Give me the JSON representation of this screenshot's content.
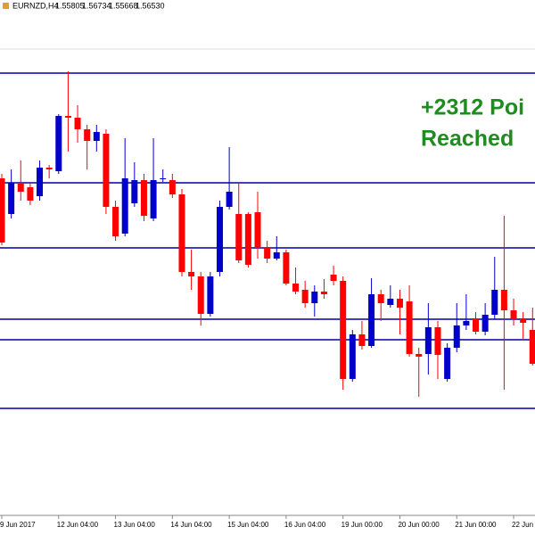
{
  "header": {
    "symbol": "EURNZD,H4",
    "ohlc": [
      "1.55805",
      "1.56734",
      "1.55668",
      "1.56530"
    ]
  },
  "chart_data": {
    "type": "candlestick",
    "annotations": [
      "+2312 Poi",
      "Reached"
    ],
    "up_color": "#0000cc",
    "down_color": "#ff0000",
    "level_color": "#0000aa",
    "ylim": [
      1.5445,
      1.6011
    ],
    "levels": [
      1.5941,
      1.5818,
      1.5745,
      1.5665,
      1.5642,
      1.5565
    ],
    "categories": [
      "9 Jun 2017",
      null,
      null,
      null,
      null,
      null,
      "12 Jun 04:00",
      null,
      null,
      null,
      null,
      null,
      "13 Jun 04:00",
      null,
      null,
      null,
      null,
      null,
      "14 Jun 04:00",
      null,
      null,
      null,
      null,
      null,
      "15 Jun 04:00",
      null,
      null,
      null,
      null,
      null,
      "16 Jun 04:00",
      null,
      null,
      null,
      null,
      null,
      "19 Jun 00:00",
      null,
      null,
      null,
      null,
      null,
      "20 Jun 00:00",
      null,
      null,
      null,
      null,
      null,
      "21 Jun 00:00",
      null,
      null,
      null,
      null,
      null,
      "22 Jun",
      null,
      null
    ],
    "open": [
      1.5823,
      1.5783,
      1.5818,
      1.5813,
      1.5803,
      1.5835,
      1.5831,
      1.5893,
      1.5891,
      1.5878,
      1.5865,
      1.5873,
      1.5791,
      1.5761,
      1.5795,
      1.5821,
      1.5778,
      1.5823,
      1.5821,
      1.5805,
      1.5718,
      1.5713,
      1.5671,
      1.5718,
      1.5791,
      1.5783,
      1.5783,
      1.5785,
      1.5745,
      1.5733,
      1.574,
      1.5705,
      1.5698,
      1.5683,
      1.5696,
      1.5715,
      1.5708,
      1.5598,
      1.5648,
      1.5635,
      1.5693,
      1.5681,
      1.5688,
      1.5685,
      1.5626,
      1.5626,
      1.5656,
      1.5598,
      1.5633,
      1.5658,
      1.5665,
      1.5651,
      1.567,
      1.5698,
      1.5675,
      1.5666,
      1.5653
    ],
    "high": [
      1.5828,
      1.5833,
      1.5843,
      1.5818,
      1.5843,
      1.5838,
      1.5895,
      1.5943,
      1.5905,
      1.5883,
      1.5883,
      1.5878,
      1.5798,
      1.5868,
      1.5841,
      1.5828,
      1.5868,
      1.5833,
      1.5828,
      1.5811,
      1.5743,
      1.5718,
      1.5718,
      1.5798,
      1.5858,
      1.5818,
      1.5785,
      1.5808,
      1.5753,
      1.5758,
      1.5743,
      1.5723,
      1.5708,
      1.5703,
      1.571,
      1.5725,
      1.5713,
      1.5653,
      1.5663,
      1.5711,
      1.5698,
      1.5703,
      1.5698,
      1.5703,
      1.5633,
      1.5683,
      1.5663,
      1.5638,
      1.5683,
      1.5693,
      1.5673,
      1.5683,
      1.5735,
      1.5781,
      1.5688,
      1.5673,
      1.5678
    ],
    "low": [
      1.5748,
      1.5778,
      1.5798,
      1.5793,
      1.5798,
      1.5823,
      1.5828,
      1.5853,
      1.5863,
      1.5833,
      1.5853,
      1.5783,
      1.5753,
      1.5758,
      1.5791,
      1.5775,
      1.5775,
      1.5819,
      1.5801,
      1.5713,
      1.5698,
      1.5658,
      1.5668,
      1.5713,
      1.5788,
      1.5728,
      1.5723,
      1.5733,
      1.5728,
      1.5731,
      1.5703,
      1.5693,
      1.5678,
      1.5668,
      1.5688,
      1.5703,
      1.5586,
      1.5595,
      1.5631,
      1.5633,
      1.5663,
      1.5678,
      1.5648,
      1.5623,
      1.5578,
      1.5603,
      1.5598,
      1.5595,
      1.5628,
      1.5653,
      1.5648,
      1.5647,
      1.5665,
      1.5586,
      1.5658,
      1.5643,
      1.5613
    ],
    "close": [
      1.5751,
      1.5818,
      1.5808,
      1.5798,
      1.5835,
      1.5833,
      1.5893,
      1.5891,
      1.5878,
      1.5865,
      1.5875,
      1.5791,
      1.5758,
      1.5823,
      1.5821,
      1.5781,
      1.5821,
      1.5823,
      1.5805,
      1.5718,
      1.5713,
      1.5671,
      1.5713,
      1.5791,
      1.5808,
      1.5731,
      1.5726,
      1.5745,
      1.5733,
      1.574,
      1.5705,
      1.5696,
      1.5683,
      1.5696,
      1.5693,
      1.5708,
      1.5598,
      1.5648,
      1.5635,
      1.5693,
      1.5683,
      1.5688,
      1.5678,
      1.5626,
      1.5623,
      1.5656,
      1.5625,
      1.5633,
      1.5658,
      1.5663,
      1.5651,
      1.567,
      1.5698,
      1.5675,
      1.5666,
      1.5661,
      1.5615
    ]
  }
}
